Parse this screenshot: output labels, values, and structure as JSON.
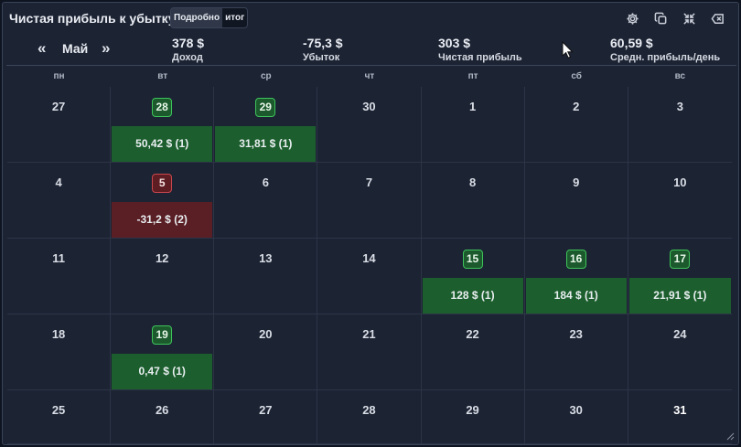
{
  "header": {
    "title": "Чистая прибыль к убытку",
    "toggle": {
      "detailed_label": "Подробно",
      "total_label": "итог"
    },
    "icons": [
      "settings-icon",
      "copy-icon",
      "collapse-icon",
      "close-icon"
    ]
  },
  "summary": {
    "prev_label": "«",
    "next_label": "»",
    "month": "Май",
    "income": {
      "value": "378 $",
      "label": "Доход"
    },
    "loss": {
      "value": "-75,3 $",
      "label": "Убыток"
    },
    "net": {
      "value": "303 $",
      "label": "Чистая прибыль"
    },
    "avg": {
      "value": "60,59 $",
      "label": "Средн. прибыль/день"
    }
  },
  "weekdays": [
    "пн",
    "вт",
    "ср",
    "чт",
    "пт",
    "сб",
    "вс"
  ],
  "days": [
    {
      "n": "27"
    },
    {
      "n": "28",
      "kind": "pos",
      "pnl": "50,42 $ (1)"
    },
    {
      "n": "29",
      "kind": "pos",
      "pnl": "31,81 $ (1)"
    },
    {
      "n": "30"
    },
    {
      "n": "1"
    },
    {
      "n": "2"
    },
    {
      "n": "3"
    },
    {
      "n": "4"
    },
    {
      "n": "5",
      "kind": "neg",
      "pnl": "-31,2 $ (2)"
    },
    {
      "n": "6"
    },
    {
      "n": "7"
    },
    {
      "n": "8"
    },
    {
      "n": "9"
    },
    {
      "n": "10"
    },
    {
      "n": "11"
    },
    {
      "n": "12"
    },
    {
      "n": "13"
    },
    {
      "n": "14"
    },
    {
      "n": "15",
      "kind": "pos",
      "pnl": "128 $ (1)"
    },
    {
      "n": "16",
      "kind": "pos",
      "pnl": "184 $ (1)"
    },
    {
      "n": "17",
      "kind": "pos",
      "pnl": "21,91 $ (1)"
    },
    {
      "n": "18"
    },
    {
      "n": "19",
      "kind": "pos",
      "pnl": "0,47 $ (1)"
    },
    {
      "n": "20"
    },
    {
      "n": "21"
    },
    {
      "n": "22"
    },
    {
      "n": "23"
    },
    {
      "n": "24"
    },
    {
      "n": "25"
    },
    {
      "n": "26"
    },
    {
      "n": "27"
    },
    {
      "n": "28"
    },
    {
      "n": "29"
    },
    {
      "n": "30"
    },
    {
      "n": "31",
      "strong": true
    }
  ],
  "colors": {
    "positive": "#1c5e2d",
    "negative": "#5a1e25",
    "background": "#1c2333"
  }
}
